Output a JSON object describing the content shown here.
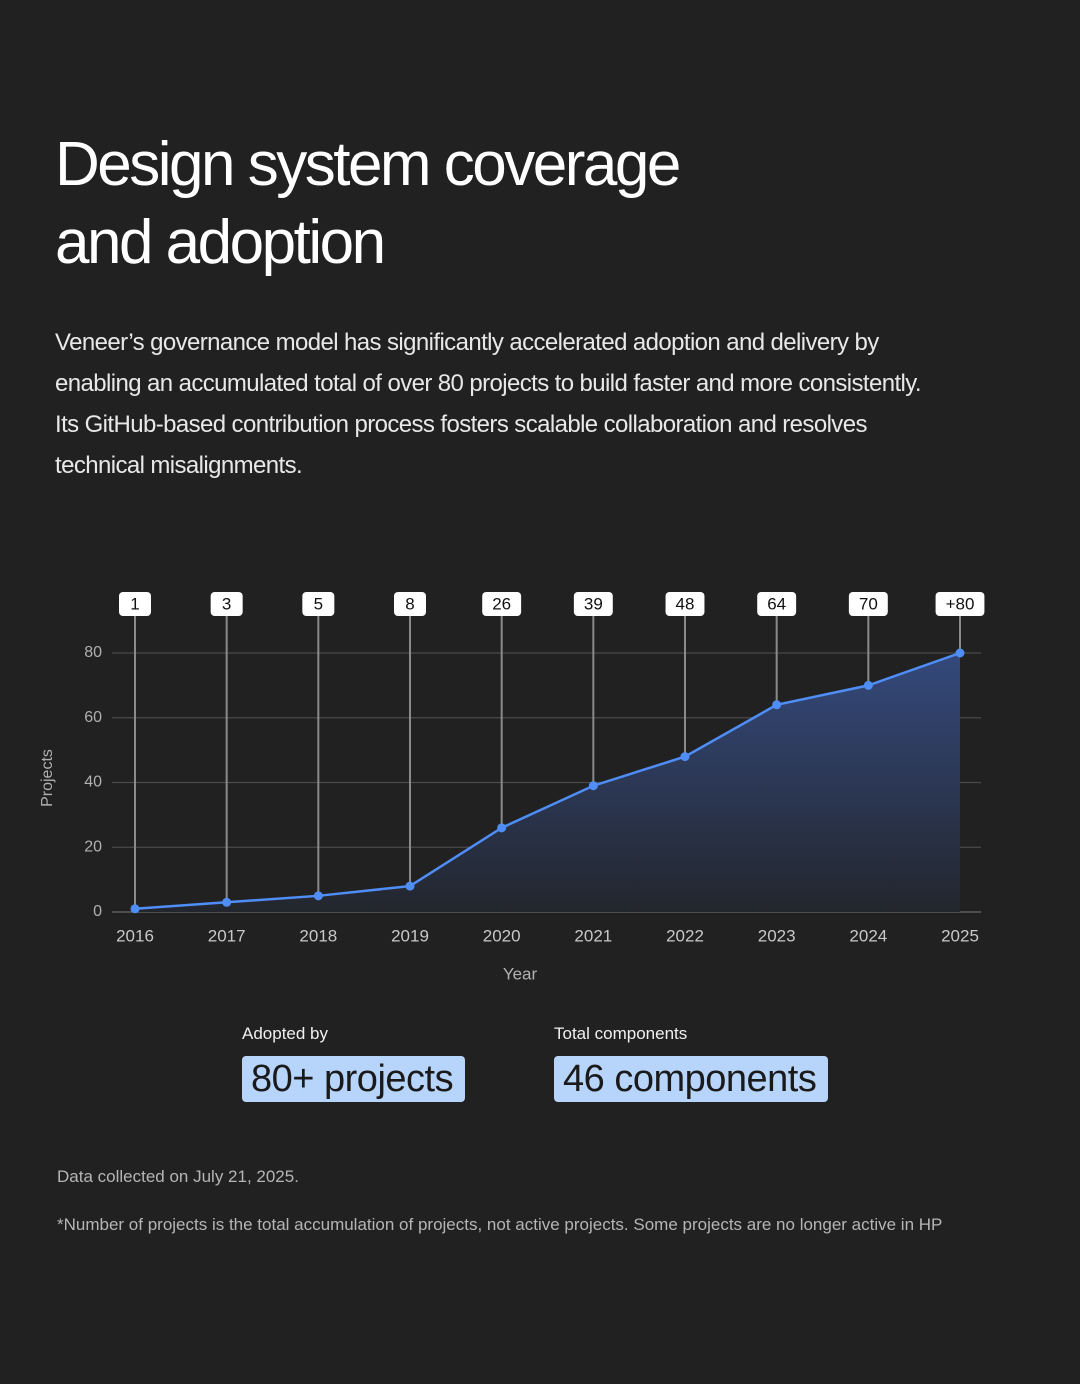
{
  "header": {
    "title": "Design system coverage\nand adoption",
    "description": "Veneer’s governance model has significantly accelerated adoption and delivery by\nenabling an accumulated total of over 80 projects to build faster and more consistently.\nIts GitHub-based contribution process fosters scalable collaboration and resolves\ntechnical misalignments."
  },
  "chart_data": {
    "type": "area",
    "x_label": "Year",
    "y_label": "Projects",
    "categories": [
      "2016",
      "2017",
      "2018",
      "2019",
      "2020",
      "2021",
      "2022",
      "2023",
      "2024",
      "2025"
    ],
    "values": [
      1,
      3,
      5,
      8,
      26,
      39,
      48,
      64,
      70,
      80
    ],
    "value_labels": [
      "1",
      "3",
      "5",
      "8",
      "26",
      "39",
      "48",
      "64",
      "70",
      "+80"
    ],
    "color": "#4f8ef7",
    "ylim": [
      0,
      80
    ],
    "yticks": [
      0,
      20,
      40,
      60,
      80
    ],
    "grid": true
  },
  "stats": [
    {
      "label": "Adopted by",
      "value": "80+ projects"
    },
    {
      "label": "Total components",
      "value": "46 components"
    }
  ],
  "footnotes": [
    "Data collected on July 21, 2025.",
    "*Number of projects is the total accumulation of projects, not active projects. Some projects are no longer active in HP"
  ]
}
